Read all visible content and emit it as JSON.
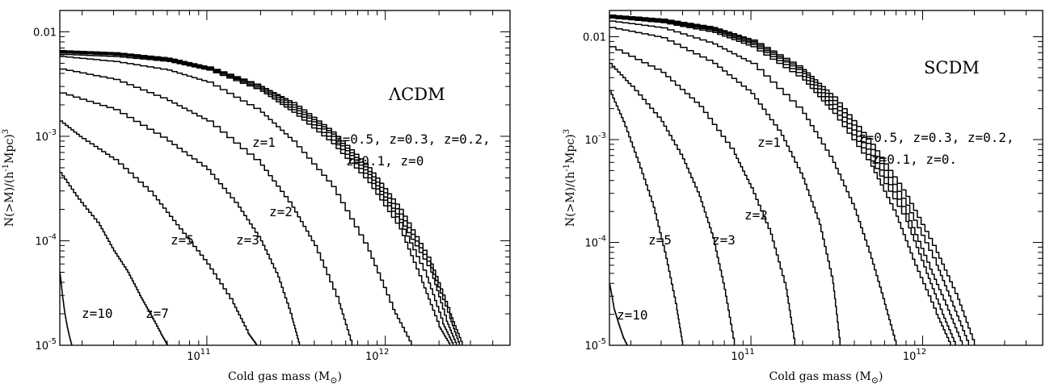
{
  "chart_data": [
    {
      "type": "line",
      "title": "",
      "xlabel": "Cold gas mass (M",
      "xlabel_sub": "⊙",
      "xlabel_close": ")",
      "ylabel": "N(>M)/(h",
      "ylabel_sup1": "-1",
      "ylabel_mid": "Mpc)",
      "ylabel_sup2": "3",
      "xscale": "log",
      "yscale": "log",
      "xlim": [
        15000000000.0,
        5000000000000.0
      ],
      "ylim": [
        1e-05,
        0.016
      ],
      "x_ticks": [
        {
          "label": "10",
          "exp": "11"
        },
        {
          "label": "10",
          "exp": "12"
        }
      ],
      "y_ticks": [
        {
          "label": "0.01",
          "exp": ""
        },
        {
          "label": "10",
          "exp": "-3"
        },
        {
          "label": "10",
          "exp": "-4"
        },
        {
          "label": "10",
          "exp": "-5"
        }
      ],
      "model_label": "ΛCDM",
      "annotations": [
        "z=1",
        "z=2",
        "z=3",
        "z=5",
        "z=7",
        "z=10",
        "z=0.5, z=0.3, z=0.2,",
        "z=0.1, z=0"
      ],
      "series": [
        {
          "x": [
            15000000000.0,
            30000000000.0,
            60000000000.0,
            100000000000.0,
            200000000000.0,
            300000000000.0,
            500000000000.0,
            800000000000.0,
            1200000000000.0,
            1800000000000.0,
            2300000000000.0,
            2700000000000.0
          ],
          "y": [
            0.0066,
            0.0063,
            0.0056,
            0.0046,
            0.003,
            0.0021,
            0.0011,
            0.0005,
            0.0002,
            6e-05,
            2e-05,
            1e-05
          ]
        },
        {
          "x": [
            15000000000.0,
            30000000000.0,
            60000000000.0,
            100000000000.0,
            200000000000.0,
            300000000000.0,
            500000000000.0,
            800000000000.0,
            1200000000000.0,
            1800000000000.0,
            2300000000000.0,
            2600000000000.0
          ],
          "y": [
            0.0065,
            0.0062,
            0.0055,
            0.0046,
            0.003,
            0.002,
            0.00105,
            0.00046,
            0.00018,
            5.5e-05,
            1.8e-05,
            1e-05
          ]
        },
        {
          "x": [
            15000000000.0,
            30000000000.0,
            60000000000.0,
            100000000000.0,
            200000000000.0,
            300000000000.0,
            500000000000.0,
            800000000000.0,
            1200000000000.0,
            1800000000000.0,
            2200000000000.0,
            2500000000000.0
          ],
          "y": [
            0.0064,
            0.0061,
            0.0054,
            0.0045,
            0.0029,
            0.0019,
            0.001,
            0.00043,
            0.00016,
            5e-05,
            1.7e-05,
            1e-05
          ]
        },
        {
          "x": [
            15000000000.0,
            30000000000.0,
            60000000000.0,
            100000000000.0,
            200000000000.0,
            300000000000.0,
            500000000000.0,
            800000000000.0,
            1200000000000.0,
            1700000000000.0,
            2100000000000.0,
            2400000000000.0
          ],
          "y": [
            0.0063,
            0.006,
            0.0053,
            0.0044,
            0.0028,
            0.0018,
            0.00092,
            0.0004,
            0.00015,
            4.5e-05,
            1.6e-05,
            1e-05
          ]
        },
        {
          "x": [
            15000000000.0,
            30000000000.0,
            60000000000.0,
            100000000000.0,
            200000000000.0,
            300000000000.0,
            500000000000.0,
            800000000000.0,
            1200000000000.0,
            1600000000000.0,
            2000000000000.0,
            2300000000000.0
          ],
          "y": [
            0.0061,
            0.0058,
            0.0052,
            0.0043,
            0.0027,
            0.0017,
            0.00085,
            0.00036,
            0.00013,
            4e-05,
            1.5e-05,
            1e-05
          ]
        },
        {
          "x": [
            15000000000.0,
            30000000000.0,
            60000000000.0,
            100000000000.0,
            200000000000.0,
            300000000000.0,
            500000000000.0,
            800000000000.0,
            1100000000000.0,
            1400000000000.0
          ],
          "y": [
            0.0058,
            0.0052,
            0.0043,
            0.0033,
            0.0017,
            0.0009,
            0.00033,
            8e-05,
            2.2e-05,
            1e-05
          ]
        },
        {
          "x": [
            15000000000.0,
            30000000000.0,
            60000000000.0,
            100000000000.0,
            200000000000.0,
            300000000000.0,
            400000000000.0,
            550000000000.0,
            650000000000.0
          ],
          "y": [
            0.0044,
            0.0035,
            0.0022,
            0.0014,
            0.00053,
            0.00021,
            9e-05,
            2.5e-05,
            1e-05
          ]
        },
        {
          "x": [
            15000000000.0,
            30000000000.0,
            60000000000.0,
            100000000000.0,
            150000000000.0,
            200000000000.0,
            250000000000.0,
            300000000000.0,
            330000000000.0
          ],
          "y": [
            0.0026,
            0.0018,
            0.0009,
            0.00048,
            0.00021,
            0.0001,
            4.5e-05,
            1.8e-05,
            1e-05
          ]
        },
        {
          "x": [
            15000000000.0,
            20000000000.0,
            30000000000.0,
            50000000000.0,
            70000000000.0,
            100000000000.0,
            140000000000.0,
            170000000000.0,
            190000000000.0
          ],
          "y": [
            0.0014,
            0.00095,
            0.0006,
            0.00027,
            0.00013,
            6e-05,
            2.5e-05,
            1.3e-05,
            1e-05
          ]
        },
        {
          "x": [
            15000000000.0,
            19000000000.0,
            25000000000.0,
            30000000000.0,
            36000000000.0,
            42000000000.0,
            48000000000.0,
            55000000000.0,
            60000000000.0
          ],
          "y": [
            0.00045,
            0.00025,
            0.00014,
            8e-05,
            5e-05,
            3e-05,
            2e-05,
            1.3e-05,
            1e-05
          ]
        },
        {
          "x": [
            15000000000.0,
            15500000000.0,
            16000000000.0,
            16500000000.0,
            17000000000.0,
            17500000000.0
          ],
          "y": [
            5e-05,
            3e-05,
            2e-05,
            1.5e-05,
            1.2e-05,
            1e-05
          ]
        }
      ]
    },
    {
      "type": "line",
      "title": "",
      "xlabel": "Cold gas mass (M",
      "xlabel_sub": "⊙",
      "xlabel_close": ")",
      "ylabel": "N(>M)/(h",
      "ylabel_sup1": "-1",
      "ylabel_mid": "Mpc)",
      "ylabel_sup2": "3",
      "xscale": "log",
      "yscale": "log",
      "xlim": [
        15000000000.0,
        5000000000000.0
      ],
      "ylim": [
        1e-05,
        0.018
      ],
      "x_ticks": [
        {
          "label": "10",
          "exp": "11"
        },
        {
          "label": "10",
          "exp": "12"
        }
      ],
      "y_ticks": [
        {
          "label": "0.01",
          "exp": ""
        },
        {
          "label": "10",
          "exp": "-3"
        },
        {
          "label": "10",
          "exp": "-4"
        },
        {
          "label": "10",
          "exp": "-5"
        }
      ],
      "model_label": "SCDM",
      "annotations": [
        "z=1",
        "z=2",
        "z=3",
        "z=5",
        "z=10",
        "z=0.5, z=0.3, z=0.2,",
        "z=0.1, z=0."
      ],
      "series": [
        {
          "x": [
            15000000000.0,
            30000000000.0,
            60000000000.0,
            100000000000.0,
            200000000000.0,
            300000000000.0,
            500000000000.0,
            800000000000.0,
            1200000000000.0,
            1600000000000.0,
            2000000000000.0
          ],
          "y": [
            0.0162,
            0.0148,
            0.0123,
            0.0093,
            0.0048,
            0.0026,
            0.0009,
            0.00028,
            8e-05,
            2.8e-05,
            1e-05
          ]
        },
        {
          "x": [
            15000000000.0,
            30000000000.0,
            60000000000.0,
            100000000000.0,
            200000000000.0,
            300000000000.0,
            500000000000.0,
            800000000000.0,
            1200000000000.0,
            1500000000000.0,
            1850000000000.0
          ],
          "y": [
            0.016,
            0.0145,
            0.012,
            0.009,
            0.0046,
            0.0024,
            0.0008,
            0.00023,
            6e-05,
            2.4e-05,
            1e-05
          ]
        },
        {
          "x": [
            15000000000.0,
            30000000000.0,
            60000000000.0,
            100000000000.0,
            200000000000.0,
            300000000000.0,
            500000000000.0,
            800000000000.0,
            1100000000000.0,
            1400000000000.0,
            1700000000000.0
          ],
          "y": [
            0.0158,
            0.0143,
            0.0117,
            0.0087,
            0.0044,
            0.0022,
            0.0007,
            0.00019,
            5.5e-05,
            2.2e-05,
            1e-05
          ]
        },
        {
          "x": [
            15000000000.0,
            30000000000.0,
            60000000000.0,
            100000000000.0,
            200000000000.0,
            300000000000.0,
            500000000000.0,
            800000000000.0,
            1050000000000.0,
            1300000000000.0,
            1550000000000.0
          ],
          "y": [
            0.0155,
            0.014,
            0.0114,
            0.0084,
            0.0041,
            0.002,
            0.00062,
            0.00016,
            5e-05,
            2e-05,
            1e-05
          ]
        },
        {
          "x": [
            15000000000.0,
            30000000000.0,
            60000000000.0,
            100000000000.0,
            200000000000.0,
            300000000000.0,
            500000000000.0,
            700000000000.0,
            900000000000.0,
            1200000000000.0,
            1450000000000.0
          ],
          "y": [
            0.0152,
            0.0137,
            0.011,
            0.008,
            0.0038,
            0.0018,
            0.00055,
            0.00018,
            6e-05,
            2e-05,
            1e-05
          ]
        },
        {
          "x": [
            15000000000.0,
            30000000000.0,
            60000000000.0,
            100000000000.0,
            200000000000.0,
            300000000000.0,
            400000000000.0,
            500000000000.0,
            600000000000.0,
            700000000000.0
          ],
          "y": [
            0.0142,
            0.0122,
            0.0085,
            0.0055,
            0.0018,
            0.0006,
            0.00021,
            7e-05,
            2.5e-05,
            1e-05
          ]
        },
        {
          "x": [
            15000000000.0,
            30000000000.0,
            60000000000.0,
            100000000000.0,
            150000000000.0,
            200000000000.0,
            250000000000.0,
            300000000000.0,
            330000000000.0
          ],
          "y": [
            0.0123,
            0.0098,
            0.0055,
            0.0028,
            0.0011,
            0.00042,
            0.00015,
            4e-05,
            1e-05
          ]
        },
        {
          "x": [
            15000000000.0,
            30000000000.0,
            50000000000.0,
            80000000000.0,
            100000000000.0,
            130000000000.0,
            160000000000.0,
            180000000000.0
          ],
          "y": [
            0.008,
            0.0045,
            0.0021,
            0.00072,
            0.00034,
            0.00012,
            3.5e-05,
            1e-05
          ]
        },
        {
          "x": [
            15000000000.0,
            20000000000.0,
            30000000000.0,
            40000000000.0,
            50000000000.0,
            60000000000.0,
            70000000000.0,
            80000000000.0
          ],
          "y": [
            0.0055,
            0.0033,
            0.0015,
            0.00065,
            0.00028,
            0.00011,
            3.5e-05,
            1e-05
          ]
        },
        {
          "x": [
            15000000000.0,
            18000000000.0,
            22000000000.0,
            27000000000.0,
            32000000000.0,
            37000000000.0,
            40000000000.0
          ],
          "y": [
            0.003,
            0.0015,
            0.0006,
            0.00022,
            7e-05,
            2.2e-05,
            1e-05
          ]
        },
        {
          "x": [
            15000000000.0,
            15500000000.0,
            16000000000.0,
            17000000000.0,
            18000000000.0,
            19000000000.0
          ],
          "y": [
            4e-05,
            3e-05,
            2.2e-05,
            1.6e-05,
            1.2e-05,
            1e-05
          ]
        }
      ]
    }
  ]
}
